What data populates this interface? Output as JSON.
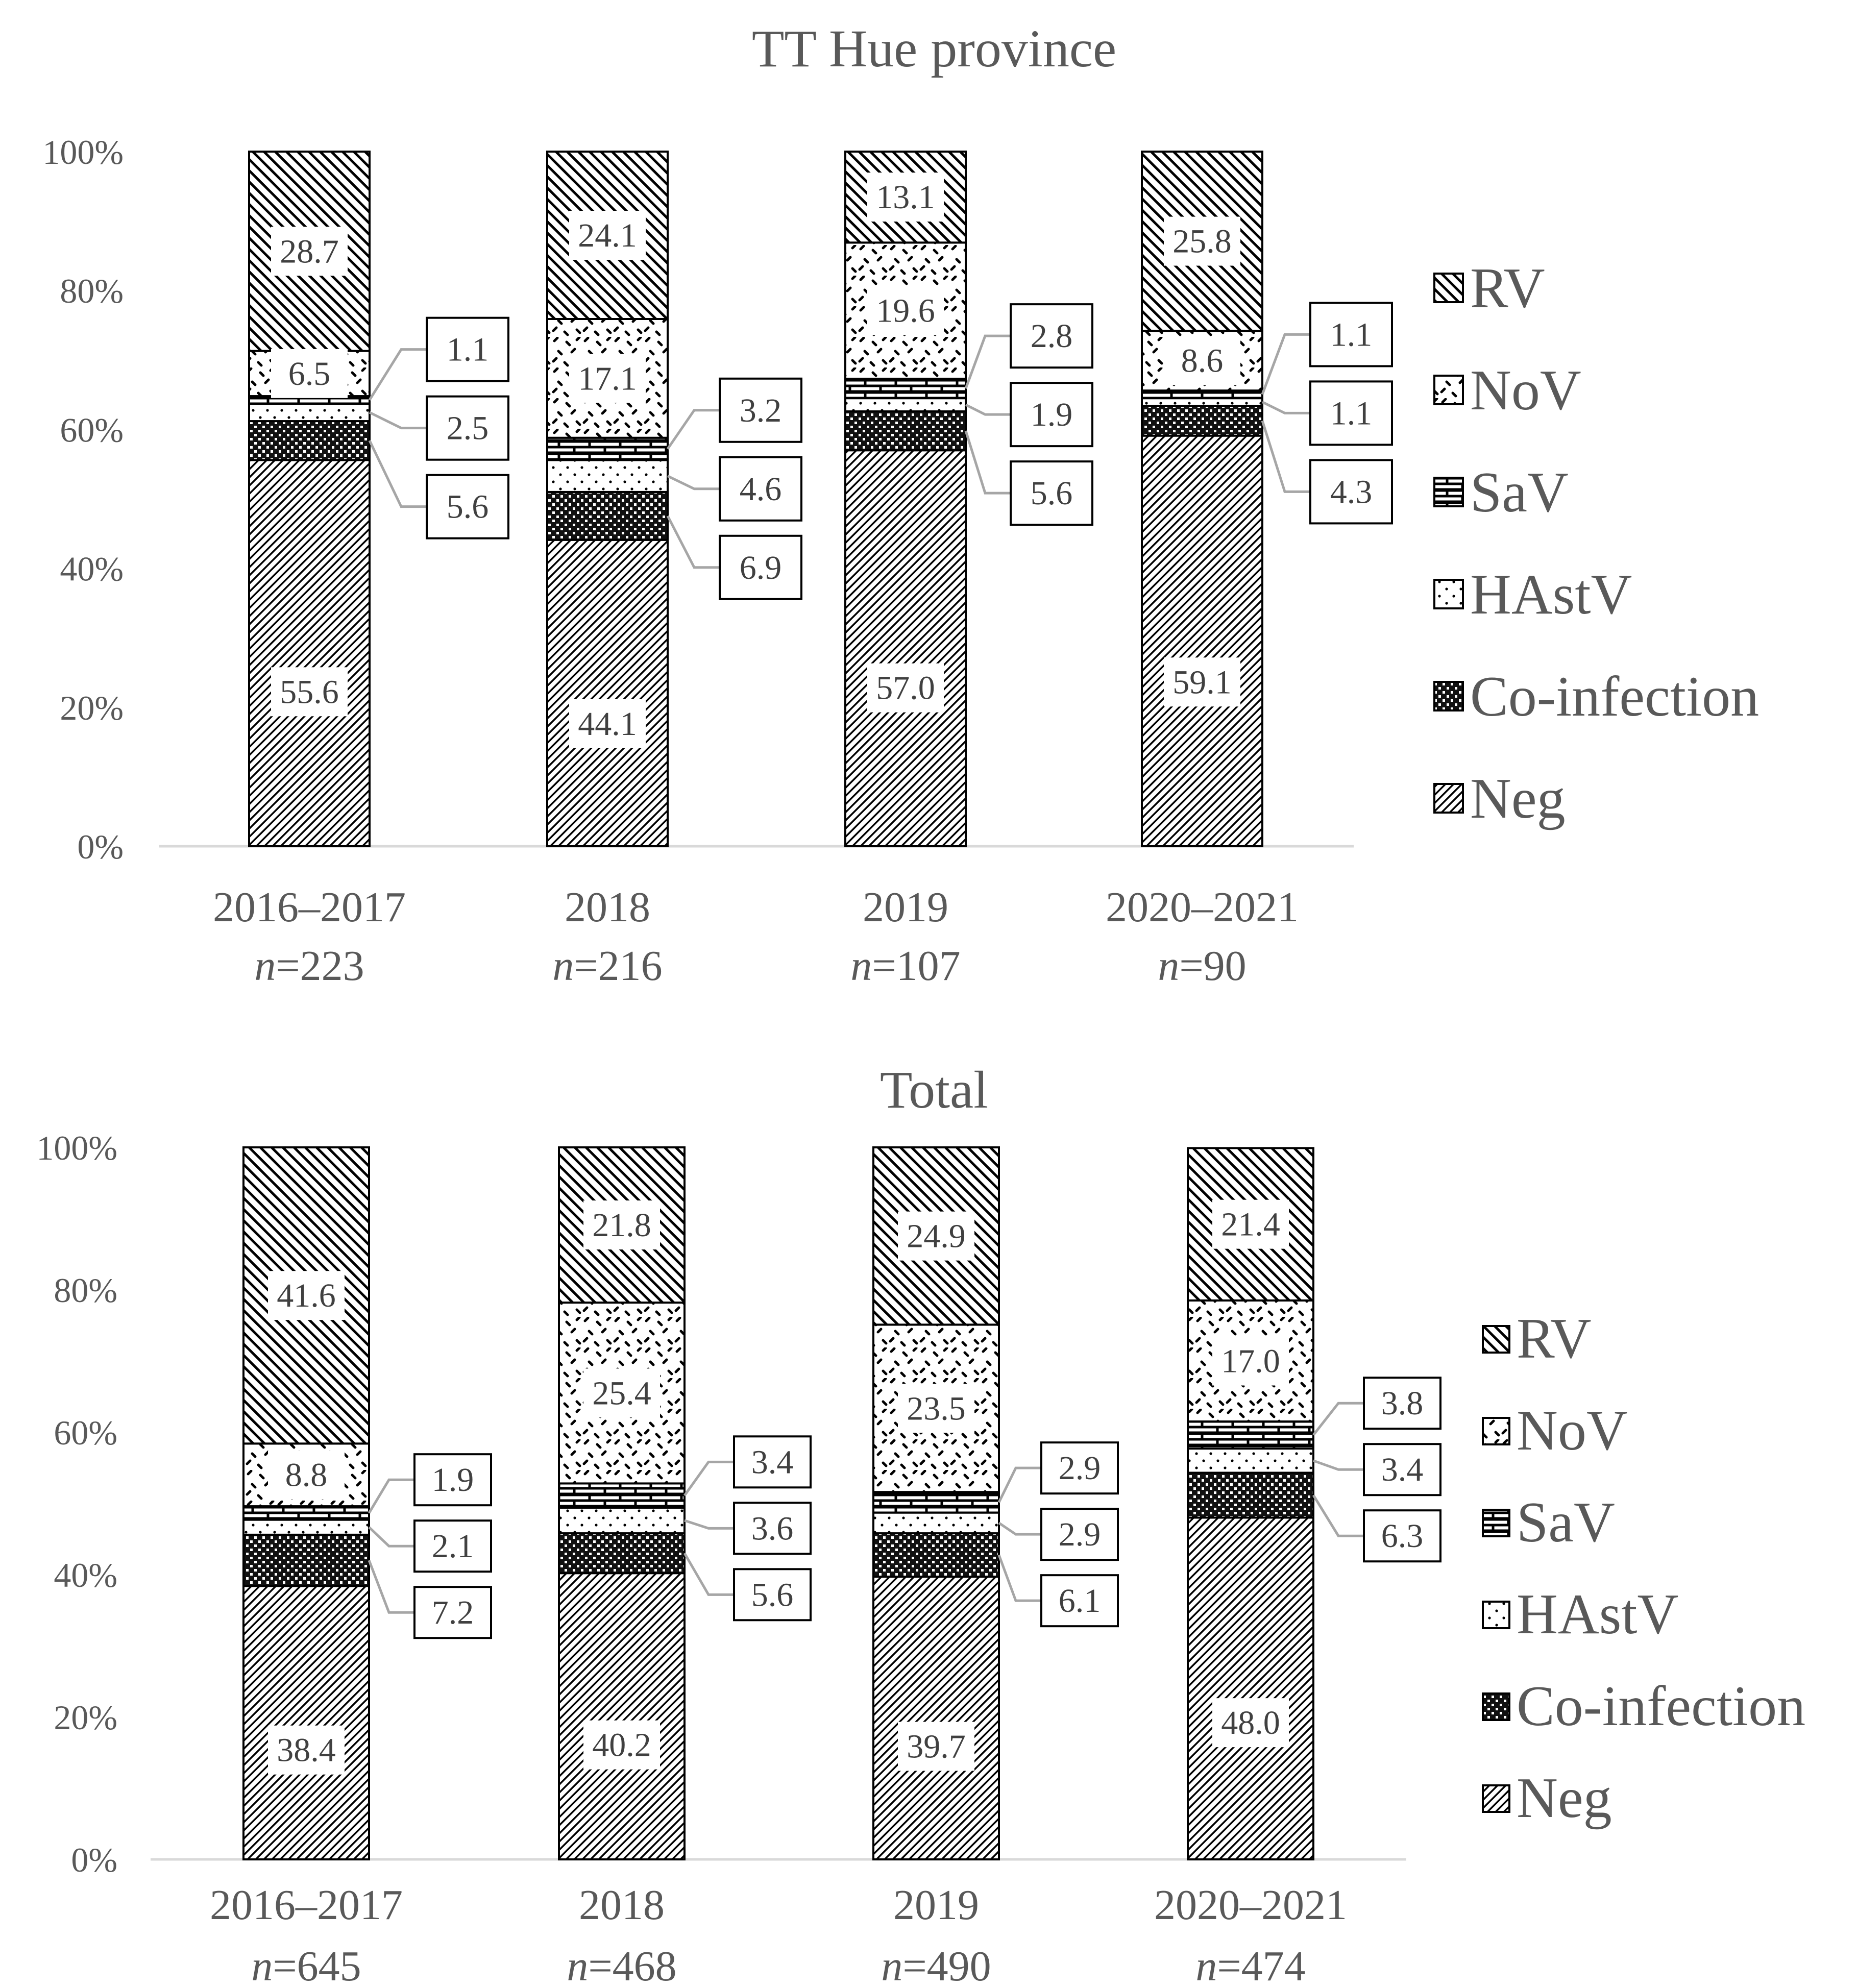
{
  "chart_data": [
    {
      "type": "bar",
      "stacked": true,
      "title": "TT Hue province",
      "categories": [
        "2016–2017",
        "2018",
        "2019",
        "2020–2021"
      ],
      "sample_sizes": [
        "n=223",
        "n=216",
        "n=107",
        "n=90"
      ],
      "y_ticks": [
        "0%",
        "20%",
        "40%",
        "60%",
        "80%",
        "100%"
      ],
      "ylim": [
        0,
        100
      ],
      "series": [
        {
          "name": "Neg",
          "values": [
            55.6,
            44.1,
            57.0,
            59.1
          ]
        },
        {
          "name": "Co-infection",
          "values": [
            5.6,
            6.9,
            5.6,
            4.3
          ]
        },
        {
          "name": "HAstV",
          "values": [
            2.5,
            4.6,
            1.9,
            1.1
          ]
        },
        {
          "name": "SaV",
          "values": [
            1.1,
            3.2,
            2.8,
            1.1
          ]
        },
        {
          "name": "NoV",
          "values": [
            6.5,
            17.1,
            19.6,
            8.6
          ]
        },
        {
          "name": "RV",
          "values": [
            28.7,
            24.1,
            13.1,
            25.8
          ]
        }
      ],
      "data_labels": [
        [
          "55.6",
          "44.1",
          "57.0",
          "59.1"
        ],
        [
          "5.6",
          "6.9",
          "5.6",
          "4.3"
        ],
        [
          "2.5",
          "4.6",
          "1.9",
          "1.1"
        ],
        [
          "1.1",
          "3.2",
          "2.8",
          "1.1"
        ],
        [
          "6.5",
          "17.1",
          "19.6",
          "8.6"
        ],
        [
          "28.7",
          "24.1",
          "13.1",
          "25.8"
        ]
      ],
      "legend": [
        "RV",
        "NoV",
        "SaV",
        "HAstV",
        "Co-infection",
        "Neg"
      ]
    },
    {
      "type": "bar",
      "stacked": true,
      "title": "Total",
      "categories": [
        "2016–2017",
        "2018",
        "2019",
        "2020–2021"
      ],
      "sample_sizes": [
        "n=645",
        "n=468",
        "n=490",
        "n=474"
      ],
      "y_ticks": [
        "0%",
        "20%",
        "40%",
        "60%",
        "80%",
        "100%"
      ],
      "ylim": [
        0,
        100
      ],
      "series": [
        {
          "name": "Neg",
          "values": [
            38.4,
            40.2,
            39.7,
            48.0
          ]
        },
        {
          "name": "Co-infection",
          "values": [
            7.2,
            5.6,
            6.1,
            6.3
          ]
        },
        {
          "name": "HAstV",
          "values": [
            2.1,
            3.6,
            2.9,
            3.4
          ]
        },
        {
          "name": "SaV",
          "values": [
            1.9,
            3.4,
            2.9,
            3.8
          ]
        },
        {
          "name": "NoV",
          "values": [
            8.8,
            25.4,
            23.5,
            17.0
          ]
        },
        {
          "name": "RV",
          "values": [
            41.6,
            21.8,
            24.9,
            21.4
          ]
        }
      ],
      "data_labels": [
        [
          "38.4",
          "40.2",
          "39.7",
          "48.0"
        ],
        [
          "7.2",
          "5.6",
          "6.1",
          "6.3"
        ],
        [
          "2.1",
          "3.6",
          "2.9",
          "3.4"
        ],
        [
          "1.9",
          "3.4",
          "2.9",
          "3.8"
        ],
        [
          "8.8",
          "25.4",
          "23.5",
          "17.0"
        ],
        [
          "41.6",
          "21.8",
          "24.9",
          "21.4"
        ]
      ],
      "legend": [
        "RV",
        "NoV",
        "SaV",
        "HAstV",
        "Co-infection",
        "Neg"
      ]
    }
  ]
}
